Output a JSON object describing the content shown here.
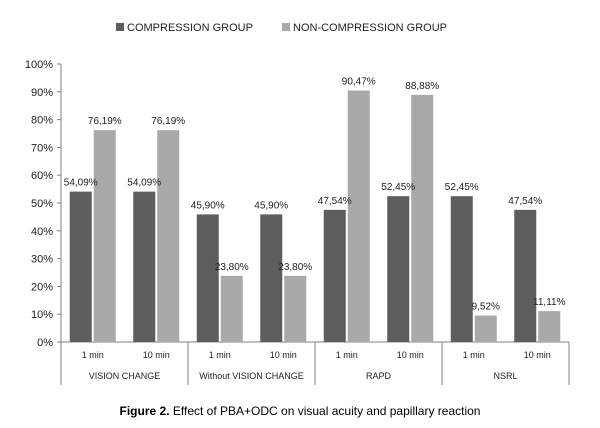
{
  "chart_data": {
    "type": "bar",
    "y_ticks": [
      "0%",
      "10%",
      "20%",
      "30%",
      "40%",
      "50%",
      "60%",
      "70%",
      "80%",
      "90%",
      "100%"
    ],
    "ylim": [
      0,
      100
    ],
    "grid": false,
    "legend_position": "top",
    "groups": [
      {
        "label": "VISION CHANGE",
        "subcategories": [
          "1 min",
          "10 min"
        ]
      },
      {
        "label": "Without VISION CHANGE",
        "subcategories": [
          "1 min",
          "10 min"
        ]
      },
      {
        "label": "RAPD",
        "subcategories": [
          "1 min",
          "10 min"
        ]
      },
      {
        "label": "NSRL",
        "subcategories": [
          "1 min",
          "10 min"
        ]
      }
    ],
    "series": [
      {
        "name": "COMPRESSION GROUP",
        "color": "#5d5d5d",
        "values": [
          54.09,
          54.09,
          45.9,
          45.9,
          47.54,
          52.45,
          52.45,
          47.54
        ],
        "labels": [
          "54,09%",
          "54,09%",
          "45,90%",
          "45,90%",
          "47,54%",
          "52,45%",
          "52,45%",
          "47,54%"
        ]
      },
      {
        "name": "NON-COMPRESSION GROUP",
        "color": "#a9a9a9",
        "values": [
          76.19,
          76.19,
          23.8,
          23.8,
          90.47,
          88.88,
          9.52,
          11.11
        ],
        "labels": [
          "76,19%",
          "76,19%",
          "23,80%",
          "23,80%",
          "90,47%",
          "88,88%",
          "9,52%",
          "11,11%"
        ]
      }
    ]
  },
  "caption": {
    "label": "Figure 2.",
    "text": " Effect of PBA+ODC on visual acuity and papillary reaction"
  }
}
